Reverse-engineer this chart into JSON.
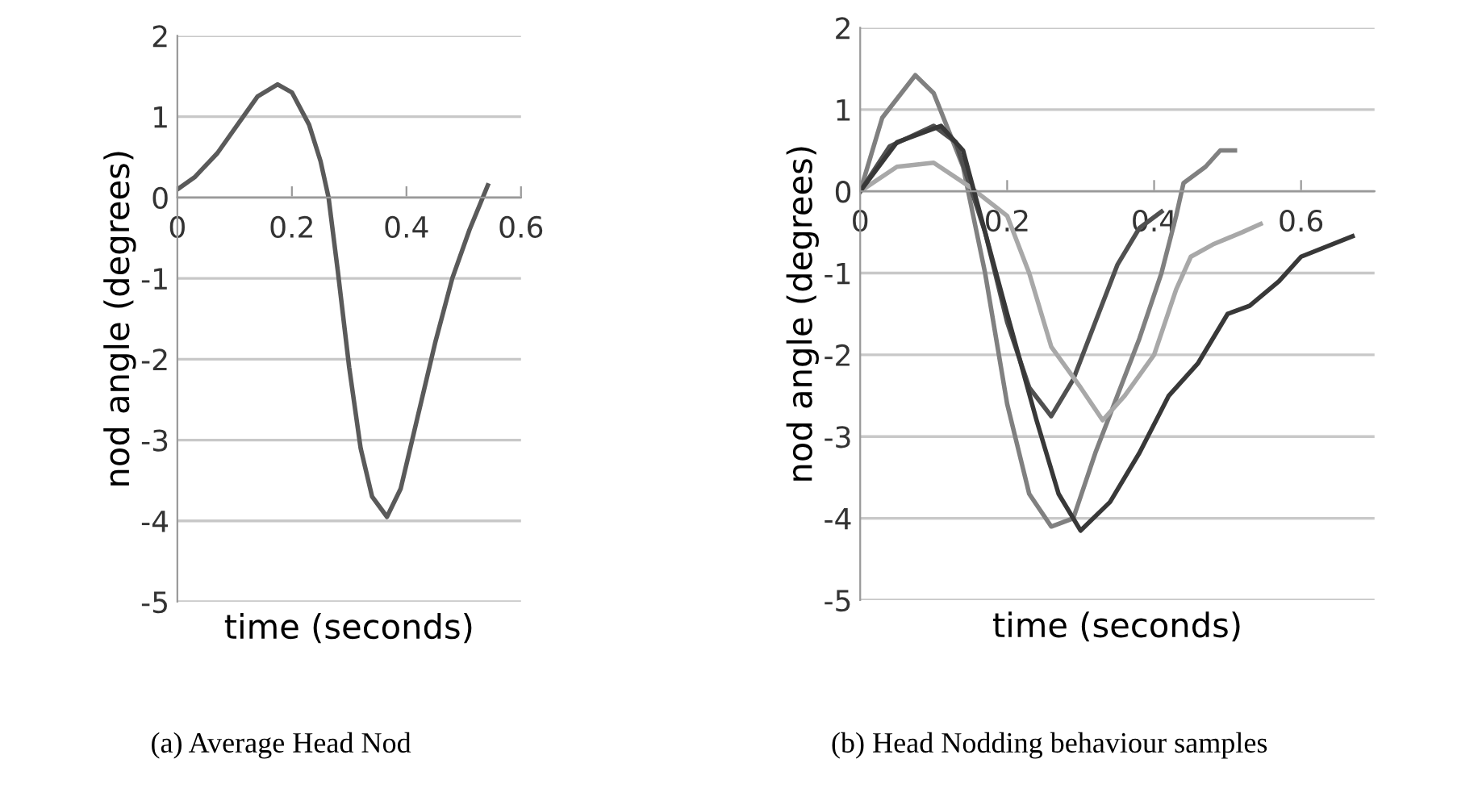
{
  "chart_data": [
    {
      "type": "line",
      "title": "(a) Average Head Nod",
      "xlabel": "time (seconds)",
      "ylabel": "nod angle (degrees)",
      "xlim": [
        0,
        0.6
      ],
      "ylim": [
        -5,
        2
      ],
      "xticks": [
        0,
        0.2,
        0.4,
        0.6
      ],
      "yticks": [
        -5,
        -4,
        -3,
        -2,
        -1,
        0,
        1,
        2
      ],
      "grid": "y",
      "line_style": "solid",
      "series": [
        {
          "color": "#5a5a5a",
          "x": [
            0,
            0.03,
            0.07,
            0.11,
            0.14,
            0.175,
            0.2,
            0.23,
            0.25,
            0.264,
            0.28,
            0.3,
            0.32,
            0.34,
            0.366,
            0.39,
            0.42,
            0.45,
            0.48,
            0.51,
            0.542
          ],
          "values": [
            0.1,
            0.25,
            0.55,
            0.95,
            1.25,
            1.4,
            1.3,
            0.9,
            0.45,
            0.0,
            -0.9,
            -2.1,
            -3.1,
            -3.7,
            -3.95,
            -3.6,
            -2.7,
            -1.8,
            -1.0,
            -0.4,
            0.15
          ]
        }
      ]
    },
    {
      "type": "line",
      "title": "(b) Head Nodding behaviour samples",
      "xlabel": "time (seconds)",
      "ylabel": "nod angle (degrees)",
      "xlim": [
        0,
        0.7
      ],
      "ylim": [
        -5,
        2
      ],
      "xticks": [
        0,
        0.2,
        0.4,
        0.6
      ],
      "yticks": [
        -5,
        -4,
        -3,
        -2,
        -1,
        0,
        1,
        2
      ],
      "grid": "y",
      "line_style": "solid",
      "series": [
        {
          "color": "#808080",
          "x": [
            0,
            0.03,
            0.075,
            0.1,
            0.14,
            0.17,
            0.2,
            0.23,
            0.26,
            0.29,
            0.32,
            0.35,
            0.38,
            0.41,
            0.43,
            0.44,
            0.47,
            0.49,
            0.51
          ],
          "values": [
            0,
            0.9,
            1.42,
            1.2,
            0.3,
            -1.0,
            -2.6,
            -3.7,
            -4.1,
            -4.0,
            -3.2,
            -2.5,
            -1.8,
            -1.0,
            -0.3,
            0.1,
            0.3,
            0.5,
            0.5
          ]
        },
        {
          "color": "#505050",
          "x": [
            0,
            0.04,
            0.1,
            0.13,
            0.17,
            0.2,
            0.23,
            0.26,
            0.29,
            0.32,
            0.35,
            0.38,
            0.41
          ],
          "values": [
            0,
            0.55,
            0.8,
            0.6,
            -0.5,
            -1.6,
            -2.4,
            -2.75,
            -2.3,
            -1.6,
            -0.9,
            -0.45,
            -0.25
          ]
        },
        {
          "color": "#a8a8a8",
          "x": [
            0,
            0.05,
            0.1,
            0.15,
            0.2,
            0.23,
            0.26,
            0.3,
            0.33,
            0.36,
            0.4,
            0.43,
            0.45,
            0.48,
            0.52,
            0.545
          ],
          "values": [
            0,
            0.3,
            0.35,
            0.05,
            -0.3,
            -1.0,
            -1.9,
            -2.4,
            -2.8,
            -2.5,
            -2.0,
            -1.2,
            -0.8,
            -0.65,
            -0.5,
            -0.4
          ]
        },
        {
          "color": "#383838",
          "x": [
            0,
            0.05,
            0.11,
            0.14,
            0.17,
            0.2,
            0.24,
            0.27,
            0.3,
            0.34,
            0.38,
            0.42,
            0.46,
            0.5,
            0.53,
            0.57,
            0.6,
            0.67
          ],
          "values": [
            0,
            0.6,
            0.8,
            0.5,
            -0.5,
            -1.5,
            -2.8,
            -3.7,
            -4.15,
            -3.8,
            -3.2,
            -2.5,
            -2.1,
            -1.5,
            -1.4,
            -1.1,
            -0.8,
            -0.55
          ]
        }
      ]
    }
  ]
}
